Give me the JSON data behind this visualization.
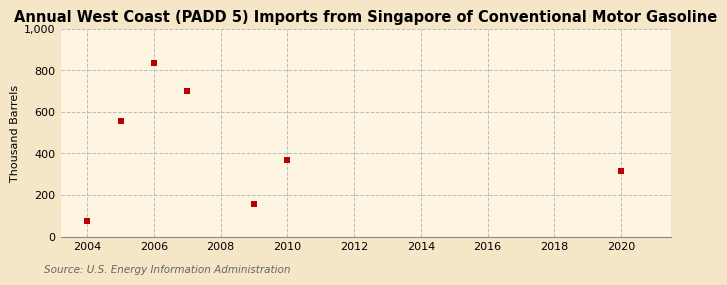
{
  "title": "Annual West Coast (PADD 5) Imports from Singapore of Conventional Motor Gasoline",
  "ylabel": "Thousand Barrels",
  "source": "Source: U.S. Energy Information Administration",
  "x_data": [
    2004,
    2005,
    2006,
    2007,
    2009,
    2010,
    2020
  ],
  "y_data": [
    75,
    555,
    835,
    700,
    155,
    370,
    315
  ],
  "xlim": [
    2003.2,
    2021.5
  ],
  "ylim": [
    0,
    1000
  ],
  "xticks": [
    2004,
    2006,
    2008,
    2010,
    2012,
    2014,
    2016,
    2018,
    2020
  ],
  "yticks": [
    0,
    200,
    400,
    600,
    800,
    1000
  ],
  "ytick_labels": [
    "0",
    "200",
    "400",
    "600",
    "800",
    "1,000"
  ],
  "bg_color": "#f5e6c8",
  "plot_bg_color": "#fdf5e2",
  "marker_color": "#bb0000",
  "marker_size": 18,
  "grid_color": "#bbbbbb",
  "title_fontsize": 10.5,
  "label_fontsize": 8,
  "tick_fontsize": 8,
  "source_fontsize": 7.5
}
